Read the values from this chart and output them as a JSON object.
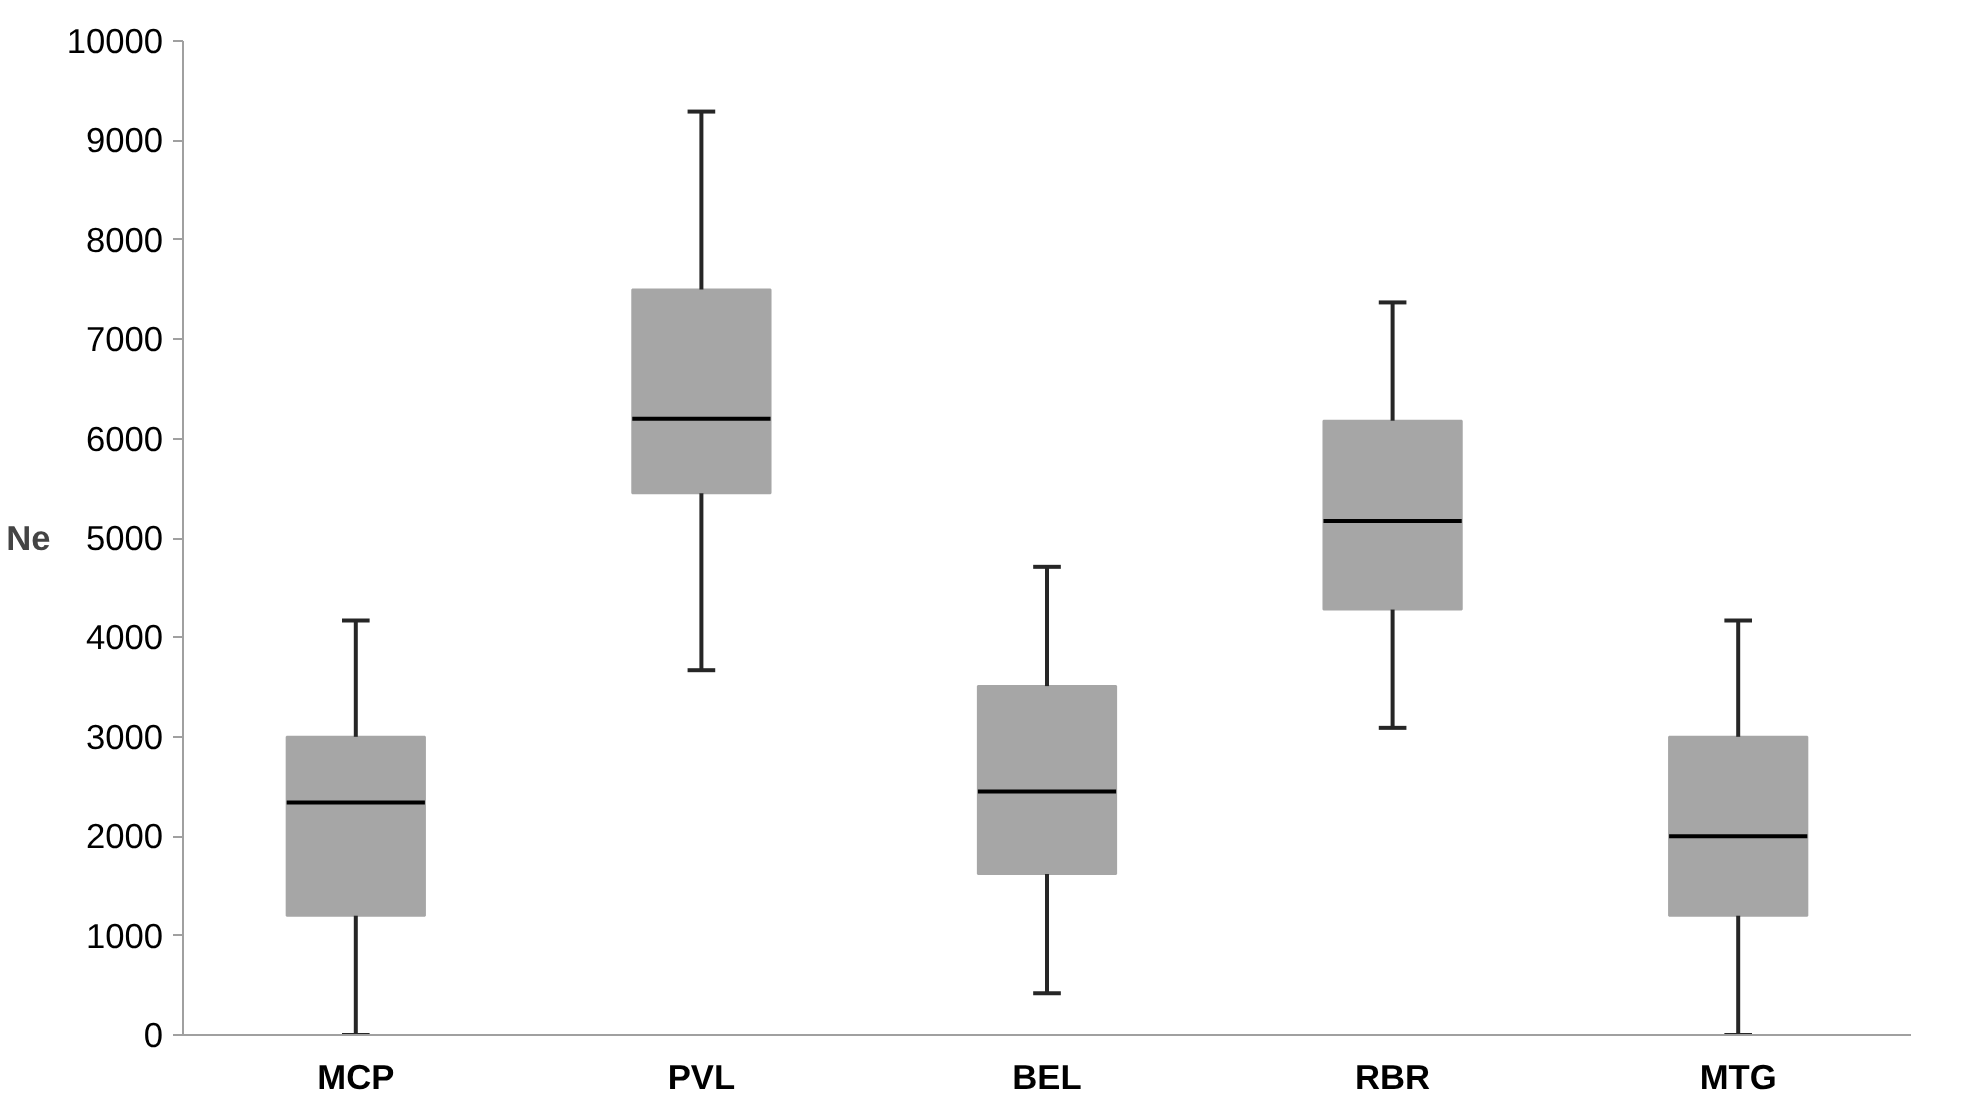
{
  "chart_data": {
    "type": "box",
    "ylabel": "Ne",
    "categories": [
      "MCP",
      "PVL",
      "BEL",
      "RBR",
      "MTG"
    ],
    "boxes": [
      {
        "low": 0,
        "q1": 1200,
        "median": 2340,
        "q3": 3000,
        "high": 4170
      },
      {
        "low": 3670,
        "q1": 5450,
        "median": 6200,
        "q3": 7500,
        "high": 9290
      },
      {
        "low": 420,
        "q1": 1620,
        "median": 2450,
        "q3": 3510,
        "high": 4710
      },
      {
        "low": 3090,
        "q1": 4280,
        "median": 5170,
        "q3": 6180,
        "high": 7370
      },
      {
        "low": 0,
        "q1": 1200,
        "median": 2000,
        "q3": 3000,
        "high": 4170
      }
    ],
    "color": "#a6a6a6",
    "ylim": [
      0,
      10000
    ],
    "yticks": [
      0,
      1000,
      2000,
      3000,
      4000,
      5000,
      6000,
      7000,
      8000,
      9000,
      10000
    ],
    "grid": false
  }
}
